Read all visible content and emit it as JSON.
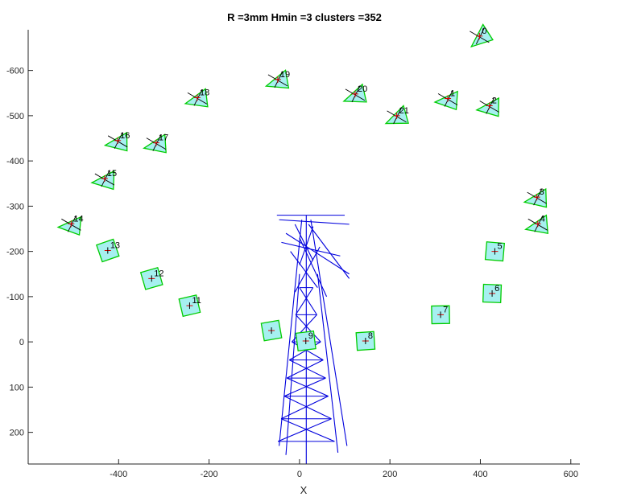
{
  "chart_data": {
    "type": "scatter",
    "title": "R =3mm Hmin =3 clusters =352",
    "xlabel": "X",
    "ylabel": "",
    "xlim": [
      -600,
      620
    ],
    "ylim": [
      -690,
      270
    ],
    "y_reversed": true,
    "xticks": [
      -400,
      -200,
      0,
      200,
      400,
      600
    ],
    "yticks": [
      -600,
      -500,
      -400,
      -300,
      -200,
      -100,
      0,
      100,
      200
    ],
    "grid": false,
    "colors": {
      "cluster_edge": "#00cc00",
      "cluster_fill": "#a6f0f0",
      "tower": "#0000dd",
      "marker_red": "#dd0000",
      "marker_black": "#000000"
    },
    "clusters": [
      {
        "label": "0",
        "x": 398,
        "y": -676,
        "shape": "tri"
      },
      {
        "label": "1",
        "x": 328,
        "y": -538,
        "shape": "tri"
      },
      {
        "label": "2",
        "x": 420,
        "y": -522,
        "shape": "tri"
      },
      {
        "label": "3",
        "x": 525,
        "y": -320,
        "shape": "tri"
      },
      {
        "label": "4",
        "x": 527,
        "y": -261,
        "shape": "tri"
      },
      {
        "label": "5",
        "x": 432,
        "y": -200,
        "shape": "quad"
      },
      {
        "label": "6",
        "x": 426,
        "y": -107,
        "shape": "quad"
      },
      {
        "label": "7",
        "x": 312,
        "y": -60,
        "shape": "quad"
      },
      {
        "label": "8",
        "x": 146,
        "y": -2,
        "shape": "quad"
      },
      {
        "label": "9",
        "x": 14,
        "y": -2,
        "shape": "quad"
      },
      {
        "label": "",
        "x": -62,
        "y": -25,
        "shape": "quad"
      },
      {
        "label": "11",
        "x": -243,
        "y": -80,
        "shape": "quad"
      },
      {
        "label": "12",
        "x": -327,
        "y": -140,
        "shape": "quad"
      },
      {
        "label": "13",
        "x": -424,
        "y": -202,
        "shape": "quad"
      },
      {
        "label": "14",
        "x": -505,
        "y": -261,
        "shape": "tri"
      },
      {
        "label": "15",
        "x": -431,
        "y": -361,
        "shape": "tri"
      },
      {
        "label": "16",
        "x": -402,
        "y": -445,
        "shape": "tri"
      },
      {
        "label": "17",
        "x": -317,
        "y": -440,
        "shape": "tri"
      },
      {
        "label": "18",
        "x": -226,
        "y": -540,
        "shape": "tri"
      },
      {
        "label": "19",
        "x": -48,
        "y": -580,
        "shape": "tri"
      },
      {
        "label": "20",
        "x": 123,
        "y": -548,
        "shape": "tri"
      },
      {
        "label": "21",
        "x": 215,
        "y": -500,
        "shape": "tri"
      }
    ]
  }
}
